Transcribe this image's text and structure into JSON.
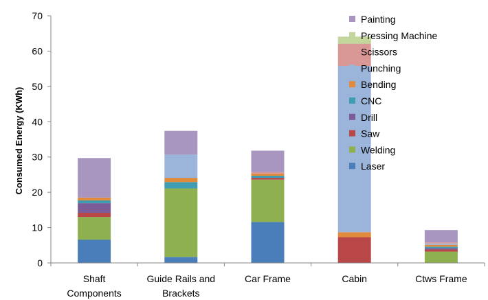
{
  "chart_data": {
    "type": "bar",
    "stacked": true,
    "ylabel": "Consumed Energy (KWh)",
    "xlabel": "",
    "ylim": [
      0,
      70
    ],
    "yticks": [
      0,
      10,
      20,
      30,
      40,
      50,
      60,
      70
    ],
    "grid": false,
    "legend_position": "top-right",
    "categories": [
      [
        "Shaft",
        "Components"
      ],
      [
        "Guide Rails and",
        "Brackets"
      ],
      [
        "Car Frame"
      ],
      [
        "Cabin"
      ],
      [
        "Ctws Frame"
      ]
    ],
    "series": [
      {
        "name": "Laser",
        "color": "#4a7ebb",
        "values": [
          6.6,
          1.7,
          11.6,
          0,
          0
        ]
      },
      {
        "name": "Welding",
        "color": "#8eb04f",
        "values": [
          6.4,
          19.4,
          12.0,
          0,
          3.2
        ]
      },
      {
        "name": "Saw",
        "color": "#b94747",
        "values": [
          1.2,
          0,
          0.5,
          7.3,
          0.6
        ]
      },
      {
        "name": "Drill",
        "color": "#7b5c98",
        "values": [
          2.7,
          0,
          0,
          0,
          0.4
        ]
      },
      {
        "name": "CNC",
        "color": "#3e9db3",
        "values": [
          0.8,
          1.8,
          0.6,
          0,
          0.4
        ]
      },
      {
        "name": "Bending",
        "color": "#e08a3c",
        "values": [
          0.8,
          1.2,
          0.6,
          1.4,
          0.5
        ]
      },
      {
        "name": "Punching",
        "color": "#9bb4d9",
        "values": [
          0,
          6.6,
          0,
          47.1,
          0.4
        ]
      },
      {
        "name": "Scissors",
        "color": "#d99795",
        "values": [
          0,
          0,
          0.4,
          6.3,
          0.3
        ]
      },
      {
        "name": "Pressing Machine",
        "color": "#c3d69b",
        "values": [
          0,
          0,
          0,
          2.0,
          0
        ]
      },
      {
        "name": "Painting",
        "color": "#a895c0",
        "values": [
          11.2,
          6.7,
          6.1,
          0,
          3.5
        ]
      }
    ]
  }
}
